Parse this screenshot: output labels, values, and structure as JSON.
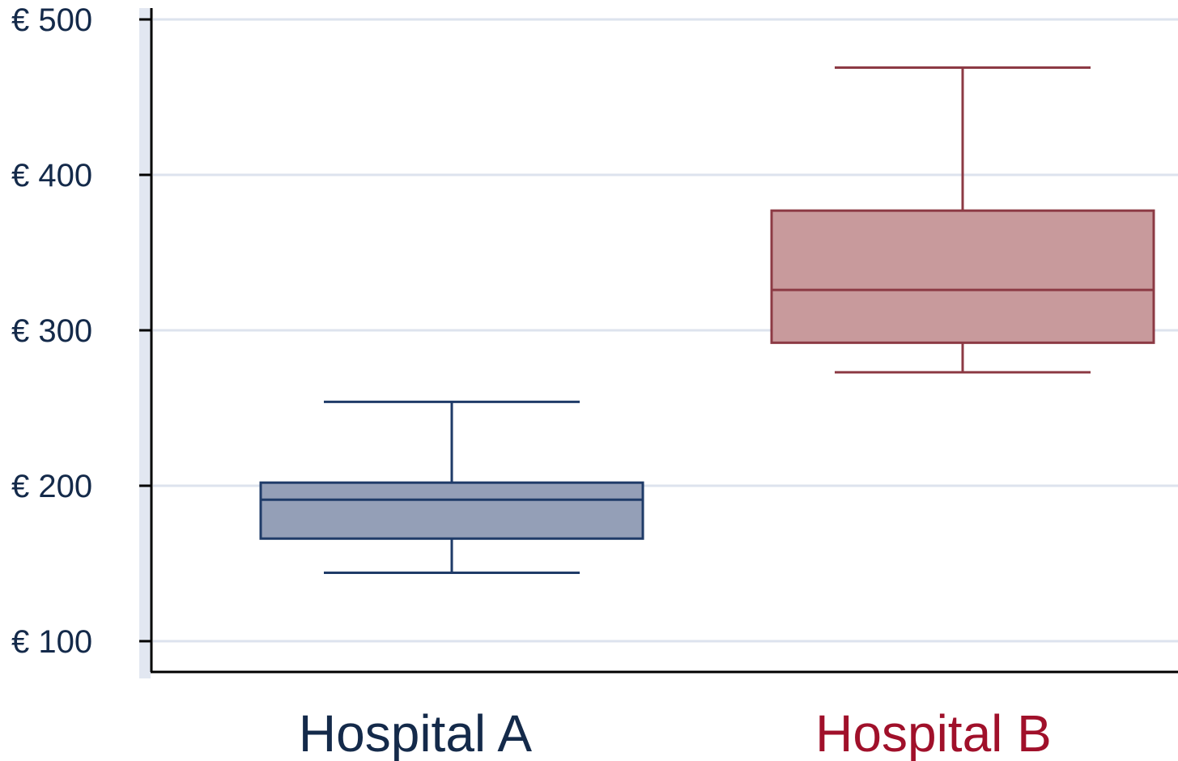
{
  "chart_data": {
    "type": "box",
    "title": "",
    "xlabel": "",
    "ylabel": "",
    "ylim": [
      80,
      510
    ],
    "yticks": [
      100,
      200,
      300,
      400,
      500
    ],
    "ytick_labels": [
      "€ 100",
      "€ 200",
      "€ 300",
      "€ 400",
      "€ 500"
    ],
    "grid": true,
    "legend": "none",
    "categories": [
      "Hospital A",
      "Hospital B"
    ],
    "series": [
      {
        "category": "Hospital A",
        "whisker_low": 144,
        "q1": 166,
        "median": 191,
        "q3": 202,
        "whisker_high": 254,
        "fill_color": "#949fb7",
        "line_color": "#1f3b68",
        "label_color": "#142a4a"
      },
      {
        "category": "Hospital B",
        "whisker_low": 273,
        "q1": 292,
        "median": 326,
        "q3": 377,
        "whisker_high": 469,
        "fill_color": "#c89a9c",
        "line_color": "#8c3a44",
        "label_color": "#a0102a"
      }
    ],
    "colors": {
      "grid": "#dde3ee",
      "axis": "#000000",
      "axis_band": "#e2e7f1"
    }
  }
}
